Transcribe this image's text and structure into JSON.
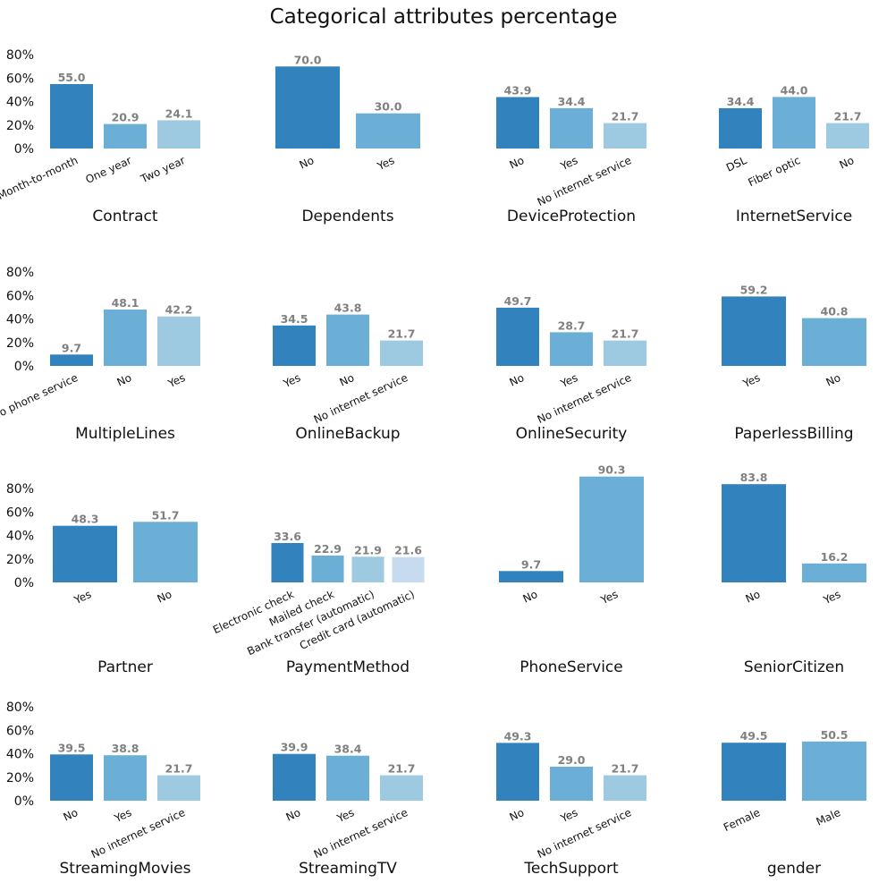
{
  "title": "Categorical attributes percentage",
  "colors": [
    "#3182bd",
    "#6baed6",
    "#9ecae1",
    "#c6dbef"
  ],
  "y_ticks": [
    "0%",
    "20%",
    "40%",
    "60%",
    "80%"
  ],
  "chart_data": [
    {
      "type": "bar",
      "title": "Contract",
      "categories": [
        "Month-to-month",
        "One year",
        "Two year"
      ],
      "values": [
        55.0,
        20.9,
        24.1
      ],
      "ylim": [
        0,
        90
      ]
    },
    {
      "type": "bar",
      "title": "Dependents",
      "categories": [
        "No",
        "Yes"
      ],
      "values": [
        70.0,
        30.0
      ],
      "ylim": [
        0,
        90
      ]
    },
    {
      "type": "bar",
      "title": "DeviceProtection",
      "categories": [
        "No",
        "Yes",
        "No internet service"
      ],
      "values": [
        43.9,
        34.4,
        21.7
      ],
      "ylim": [
        0,
        90
      ]
    },
    {
      "type": "bar",
      "title": "InternetService",
      "categories": [
        "DSL",
        "Fiber optic",
        "No"
      ],
      "values": [
        34.4,
        44.0,
        21.7
      ],
      "ylim": [
        0,
        90
      ]
    },
    {
      "type": "bar",
      "title": "MultipleLines",
      "categories": [
        "No phone service",
        "No",
        "Yes"
      ],
      "values": [
        9.7,
        48.1,
        42.2
      ],
      "ylim": [
        0,
        90
      ]
    },
    {
      "type": "bar",
      "title": "OnlineBackup",
      "categories": [
        "Yes",
        "No",
        "No internet service"
      ],
      "values": [
        34.5,
        43.8,
        21.7
      ],
      "ylim": [
        0,
        90
      ]
    },
    {
      "type": "bar",
      "title": "OnlineSecurity",
      "categories": [
        "No",
        "Yes",
        "No internet service"
      ],
      "values": [
        49.7,
        28.7,
        21.7
      ],
      "ylim": [
        0,
        90
      ]
    },
    {
      "type": "bar",
      "title": "PaperlessBilling",
      "categories": [
        "Yes",
        "No"
      ],
      "values": [
        59.2,
        40.8
      ],
      "ylim": [
        0,
        90
      ]
    },
    {
      "type": "bar",
      "title": "Partner",
      "categories": [
        "Yes",
        "No"
      ],
      "values": [
        48.3,
        51.7
      ],
      "ylim": [
        0,
        90
      ]
    },
    {
      "type": "bar",
      "title": "PaymentMethod",
      "categories": [
        "Electronic check",
        "Mailed check",
        "Bank transfer (automatic)",
        "Credit card (automatic)"
      ],
      "values": [
        33.6,
        22.9,
        21.9,
        21.6
      ],
      "ylim": [
        0,
        90
      ]
    },
    {
      "type": "bar",
      "title": "PhoneService",
      "categories": [
        "No",
        "Yes"
      ],
      "values": [
        9.7,
        90.3
      ],
      "ylim": [
        0,
        90
      ]
    },
    {
      "type": "bar",
      "title": "SeniorCitizen",
      "categories": [
        "No",
        "Yes"
      ],
      "values": [
        83.8,
        16.2
      ],
      "ylim": [
        0,
        90
      ]
    },
    {
      "type": "bar",
      "title": "StreamingMovies",
      "categories": [
        "No",
        "Yes",
        "No internet service"
      ],
      "values": [
        39.5,
        38.8,
        21.7
      ],
      "ylim": [
        0,
        90
      ]
    },
    {
      "type": "bar",
      "title": "StreamingTV",
      "categories": [
        "No",
        "Yes",
        "No internet service"
      ],
      "values": [
        39.9,
        38.4,
        21.7
      ],
      "ylim": [
        0,
        90
      ]
    },
    {
      "type": "bar",
      "title": "TechSupport",
      "categories": [
        "No",
        "Yes",
        "No internet service"
      ],
      "values": [
        49.3,
        29.0,
        21.7
      ],
      "ylim": [
        0,
        90
      ]
    },
    {
      "type": "bar",
      "title": "gender",
      "categories": [
        "Female",
        "Male"
      ],
      "values": [
        49.5,
        50.5
      ],
      "ylim": [
        0,
        90
      ]
    }
  ]
}
